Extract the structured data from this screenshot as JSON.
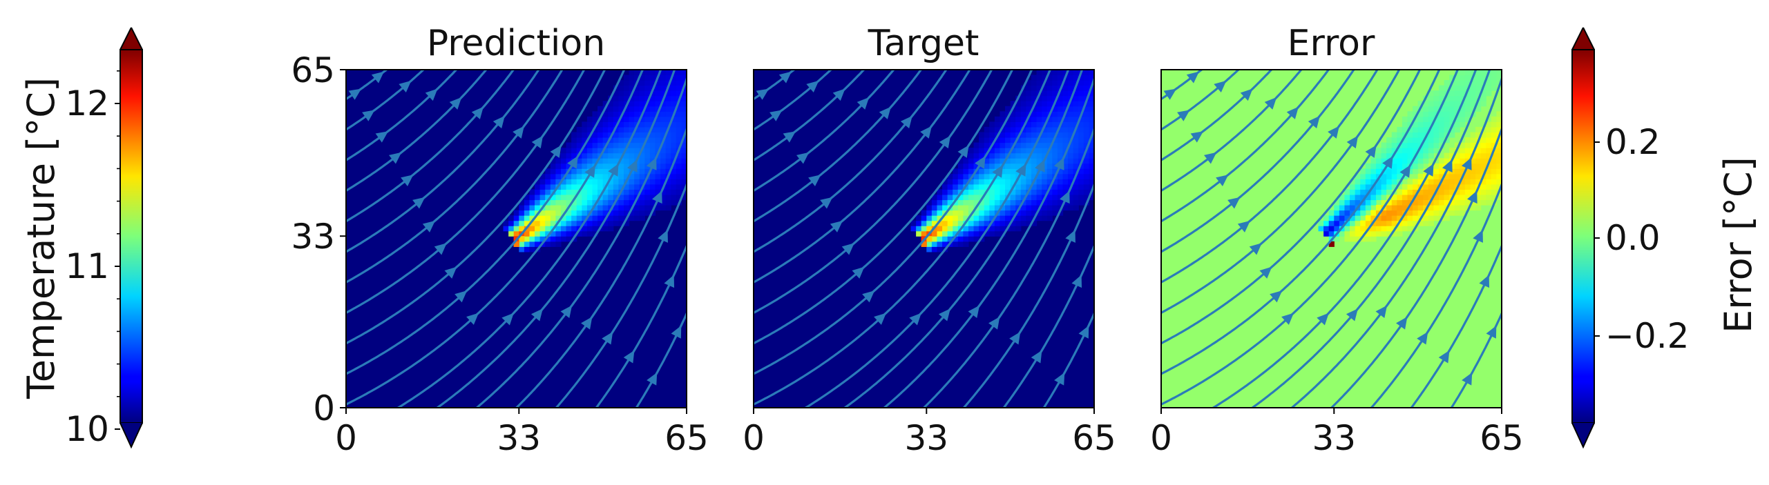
{
  "figure": {
    "panels": [
      "Prediction",
      "Target",
      "Error"
    ]
  },
  "chart_data": [
    {
      "type": "heatmap",
      "title": "Prediction",
      "xlim": [
        0,
        65
      ],
      "ylim": [
        0,
        65
      ],
      "xticks": [
        "0",
        "33",
        "65"
      ],
      "yticks": [
        "0",
        "33",
        "65"
      ],
      "field": "temperature",
      "plume": {
        "source": [
          33,
          33
        ],
        "direction": "upper-right",
        "peak": 12.4,
        "background": 10
      },
      "overlay": "streamlines",
      "colorbar": "temperature"
    },
    {
      "type": "heatmap",
      "title": "Target",
      "xlim": [
        0,
        65
      ],
      "ylim": [
        0,
        65
      ],
      "xticks": [
        "0",
        "33",
        "65"
      ],
      "yticks": [],
      "field": "temperature",
      "plume": {
        "source": [
          33,
          33
        ],
        "direction": "upper-right",
        "peak": 12.4,
        "background": 10
      },
      "overlay": "streamlines",
      "colorbar": "temperature"
    },
    {
      "type": "heatmap",
      "title": "Error",
      "xlim": [
        0,
        65
      ],
      "ylim": [
        0,
        65
      ],
      "xticks": [
        "0",
        "33",
        "65"
      ],
      "yticks": [],
      "field": "error",
      "overlay": "streamlines",
      "colorbar": "error"
    }
  ],
  "colorbars": {
    "temperature": {
      "label": "Temperature [°C]",
      "colormap": "jet",
      "range": [
        10,
        12.4
      ],
      "ticks": [
        10,
        11,
        12
      ],
      "tick_labels": [
        "10",
        "11",
        "12"
      ],
      "extend": "both"
    },
    "error": {
      "label": "Error [°C]",
      "colormap": "jet",
      "range": [
        -0.38,
        0.38
      ],
      "ticks": [
        -0.2,
        0.0,
        0.2
      ],
      "tick_labels": [
        "−0.2",
        "0.0",
        "0.2"
      ],
      "extend": "both"
    }
  },
  "colors": {
    "streamline": "#2b7bb9",
    "axes": "#000000"
  }
}
